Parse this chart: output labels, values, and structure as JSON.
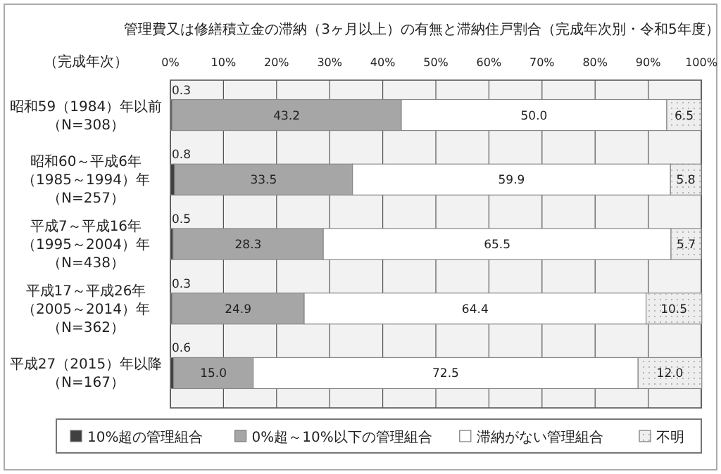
{
  "chart_data": {
    "type": "bar",
    "orientation": "horizontal",
    "stacked": true,
    "title": "管理費又は修繕積立金の滞納（3ヶ月以上）の有無と滞納住戸割合（完成年次別・令和5年度）",
    "ylabel": "（完成年次）",
    "categories": [
      "昭和59（1984）年以前（N=308）",
      "昭和60～平成6年（1985～1994）年（N=257）",
      "平成7～平成16年（1995～2004）年（N=438）",
      "平成17～平成26年（2005～2014）年（N=362）",
      "平成27（2015）年以降（N=167）"
    ],
    "series": [
      {
        "name": "10%超の管理組合",
        "color": "#404040",
        "values": [
          0.3,
          0.8,
          0.5,
          0.3,
          0.6
        ],
        "value_labels": [
          "0.3",
          "0.8",
          "0.5",
          "0.3",
          "0.6"
        ]
      },
      {
        "name": "0%超～10%以下の管理組合",
        "color": "#a6a6a6",
        "values": [
          43.2,
          33.5,
          28.3,
          24.9,
          15.0
        ],
        "value_labels": [
          "43.2",
          "33.5",
          "28.3",
          "24.9",
          "15.0"
        ]
      },
      {
        "name": "滞納がない管理組合",
        "color": "#ffffff",
        "values": [
          50.0,
          59.9,
          65.5,
          64.4,
          72.5
        ],
        "value_labels": [
          "50.0",
          "59.9",
          "65.5",
          "64.4",
          "72.5"
        ]
      },
      {
        "name": "不明",
        "color": "#eeeeee",
        "values": [
          6.5,
          5.8,
          5.7,
          10.5,
          12.0
        ],
        "value_labels": [
          "6.5",
          "5.8",
          "5.7",
          "10.5",
          "12.0"
        ]
      }
    ],
    "xlim": [
      0,
      100
    ],
    "xticks": [
      {
        "value": 0,
        "label": "0%"
      },
      {
        "value": 10,
        "label": "10%"
      },
      {
        "value": 20,
        "label": "20%"
      },
      {
        "value": 30,
        "label": "30%"
      },
      {
        "value": 40,
        "label": "40%"
      },
      {
        "value": 50,
        "label": "50%"
      },
      {
        "value": 60,
        "label": "60%"
      },
      {
        "value": 70,
        "label": "70%"
      },
      {
        "value": 80,
        "label": "80%"
      },
      {
        "value": 90,
        "label": "90%"
      },
      {
        "value": 100,
        "label": "100%"
      }
    ],
    "grid": "x",
    "legend": "bottom"
  }
}
